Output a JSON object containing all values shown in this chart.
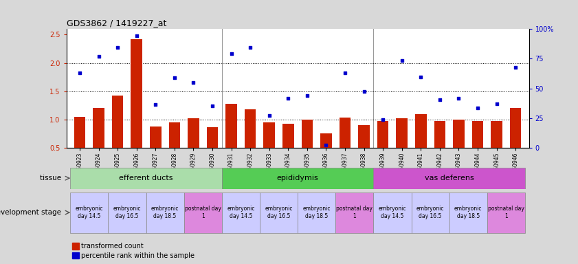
{
  "title": "GDS3862 / 1419227_at",
  "samples": [
    "GSM560923",
    "GSM560924",
    "GSM560925",
    "GSM560926",
    "GSM560927",
    "GSM560928",
    "GSM560929",
    "GSM560930",
    "GSM560931",
    "GSM560932",
    "GSM560933",
    "GSM560934",
    "GSM560935",
    "GSM560936",
    "GSM560937",
    "GSM560938",
    "GSM560939",
    "GSM560940",
    "GSM560941",
    "GSM560942",
    "GSM560943",
    "GSM560944",
    "GSM560945",
    "GSM560946"
  ],
  "bar_values": [
    1.05,
    1.2,
    1.42,
    2.42,
    0.88,
    0.95,
    1.02,
    0.86,
    1.28,
    1.18,
    0.95,
    0.92,
    1.0,
    0.75,
    1.03,
    0.9,
    0.98,
    1.02,
    1.1,
    0.98,
    1.0,
    0.98,
    0.98,
    1.2
  ],
  "scatter_values": [
    1.83,
    2.12,
    2.27,
    2.48,
    1.27,
    1.74,
    1.66,
    1.24,
    2.17,
    2.27,
    1.07,
    1.38,
    1.42,
    0.55,
    1.82,
    1.5,
    1.0,
    2.04,
    1.75,
    1.35,
    1.37,
    1.2,
    1.28,
    1.92
  ],
  "bar_color": "#cc2200",
  "scatter_color": "#0000cc",
  "ylim_left": [
    0.5,
    2.6
  ],
  "ylim_right": [
    0,
    100
  ],
  "yticks_left": [
    0.5,
    1.0,
    1.5,
    2.0,
    2.5
  ],
  "yticks_right": [
    0,
    25,
    50,
    75,
    100
  ],
  "hlines": [
    1.0,
    1.5,
    2.0
  ],
  "tissue_groups": [
    {
      "label": "efferent ducts",
      "start": 0,
      "end": 8,
      "color": "#aaddaa"
    },
    {
      "label": "epididymis",
      "start": 8,
      "end": 16,
      "color": "#55cc55"
    },
    {
      "label": "vas deferens",
      "start": 16,
      "end": 24,
      "color": "#cc55cc"
    }
  ],
  "dev_stage_groups": [
    {
      "label": "embryonic\nday 14.5",
      "start": 0,
      "end": 2,
      "color": "#ccccff"
    },
    {
      "label": "embryonic\nday 16.5",
      "start": 2,
      "end": 4,
      "color": "#ccccff"
    },
    {
      "label": "embryonic\nday 18.5",
      "start": 4,
      "end": 6,
      "color": "#ccccff"
    },
    {
      "label": "postnatal day\n1",
      "start": 6,
      "end": 8,
      "color": "#dd88dd"
    },
    {
      "label": "embryonic\nday 14.5",
      "start": 8,
      "end": 10,
      "color": "#ccccff"
    },
    {
      "label": "embryonic\nday 16.5",
      "start": 10,
      "end": 12,
      "color": "#ccccff"
    },
    {
      "label": "embryonic\nday 18.5",
      "start": 12,
      "end": 14,
      "color": "#ccccff"
    },
    {
      "label": "postnatal day\n1",
      "start": 14,
      "end": 16,
      "color": "#dd88dd"
    },
    {
      "label": "embryonic\nday 14.5",
      "start": 16,
      "end": 18,
      "color": "#ccccff"
    },
    {
      "label": "embryonic\nday 16.5",
      "start": 18,
      "end": 20,
      "color": "#ccccff"
    },
    {
      "label": "embryonic\nday 18.5",
      "start": 20,
      "end": 22,
      "color": "#ccccff"
    },
    {
      "label": "postnatal day\n1",
      "start": 22,
      "end": 24,
      "color": "#dd88dd"
    }
  ],
  "tissue_label": "tissue",
  "dev_label": "development stage",
  "legend_bar": "transformed count",
  "legend_scatter": "percentile rank within the sample",
  "bg_color": "#d8d8d8",
  "plot_bg": "#ffffff"
}
